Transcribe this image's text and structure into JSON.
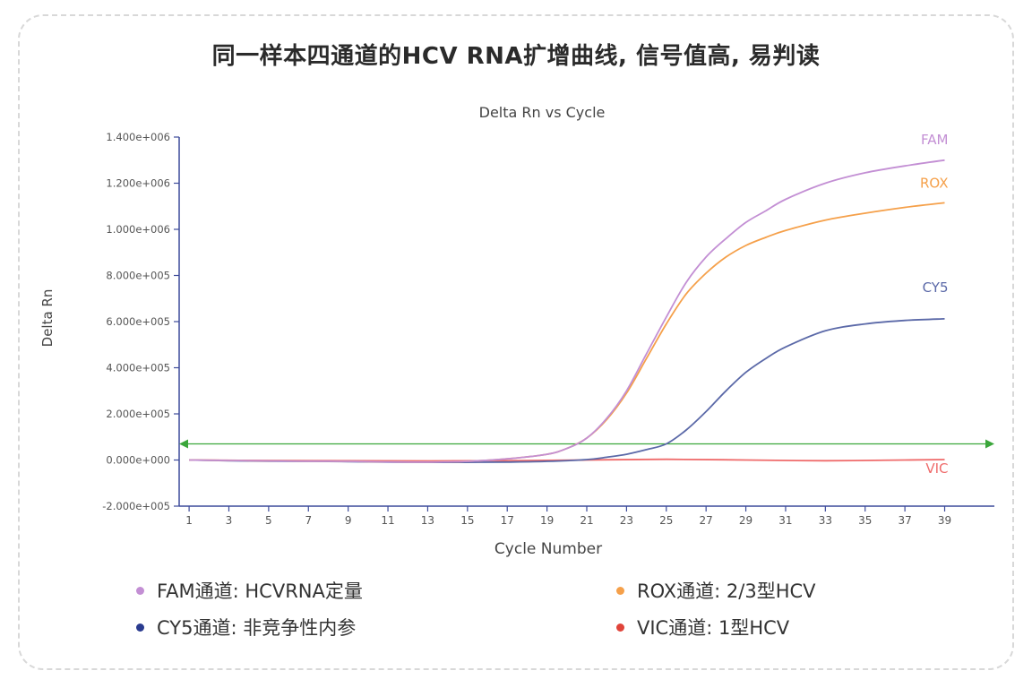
{
  "page": {
    "title": "同一样本四通道的HCV RNA扩增曲线, 信号值高, 易判读"
  },
  "legend": [
    {
      "label": "FAM通道: HCVRNA定量",
      "color": "#c38fd4"
    },
    {
      "label": "ROX通道: 2/3型HCV",
      "color": "#f5a04a"
    },
    {
      "label": "CY5通道: 非竞争性内参",
      "color": "#2a3b8f"
    },
    {
      "label": "VIC通道: 1型HCV",
      "color": "#e0443a"
    }
  ],
  "chart_data": {
    "type": "line",
    "title": "Delta Rn vs Cycle",
    "xlabel": "Cycle Number",
    "ylabel": "Delta Rn",
    "xlim": [
      0.5,
      41.5
    ],
    "ylim": [
      -200000,
      1400000
    ],
    "x_ticks": [
      1,
      3,
      5,
      7,
      9,
      11,
      13,
      15,
      17,
      19,
      21,
      23,
      25,
      27,
      29,
      31,
      33,
      35,
      37,
      39
    ],
    "x_tick_labels": [
      "1",
      "3",
      "5",
      "7",
      "9",
      "11",
      "13",
      "15",
      "17",
      "19",
      "21",
      "23",
      "25",
      "27",
      "29",
      "31",
      "33",
      "35",
      "37",
      "39"
    ],
    "y_ticks": [
      -200000,
      0,
      200000,
      400000,
      600000,
      800000,
      1000000,
      1200000,
      1400000
    ],
    "y_tick_labels": [
      "-2.000e+005",
      "0.000e+000",
      "2.000e+005",
      "4.000e+005",
      "6.000e+005",
      "8.000e+005",
      "1.000e+006",
      "1.200e+006",
      "1.400e+006"
    ],
    "threshold": {
      "value": 70000,
      "color": "#3aa63a"
    },
    "grid": false,
    "series": [
      {
        "name": "FAM",
        "color": "#c38fd4",
        "x": [
          1,
          3,
          5,
          7,
          9,
          11,
          13,
          15,
          17,
          19,
          20,
          21,
          22,
          23,
          24,
          25,
          26,
          27,
          28,
          29,
          30,
          31,
          33,
          35,
          37,
          39
        ],
        "y": [
          0,
          -2000,
          -4000,
          -5000,
          -6000,
          -8000,
          -9000,
          -6000,
          5000,
          25000,
          50000,
          95000,
          180000,
          300000,
          460000,
          620000,
          770000,
          880000,
          960000,
          1030000,
          1080000,
          1130000,
          1200000,
          1245000,
          1275000,
          1300000
        ]
      },
      {
        "name": "ROX",
        "color": "#f5a04a",
        "x": [
          1,
          3,
          5,
          7,
          9,
          11,
          13,
          15,
          17,
          19,
          20,
          21,
          22,
          23,
          24,
          25,
          26,
          27,
          28,
          29,
          30,
          31,
          33,
          35,
          37,
          39
        ],
        "y": [
          0,
          -2000,
          -4000,
          -5000,
          -6000,
          -8000,
          -9000,
          -6000,
          5000,
          25000,
          50000,
          95000,
          175000,
          290000,
          440000,
          590000,
          720000,
          810000,
          880000,
          930000,
          965000,
          995000,
          1040000,
          1070000,
          1095000,
          1115000
        ]
      },
      {
        "name": "CY5",
        "color": "#5b69a8",
        "x": [
          1,
          3,
          5,
          7,
          9,
          11,
          13,
          15,
          17,
          19,
          21,
          22,
          23,
          24,
          25,
          26,
          27,
          28,
          29,
          30,
          31,
          33,
          35,
          37,
          39
        ],
        "y": [
          0,
          -3000,
          -5000,
          -6000,
          -7000,
          -9000,
          -10000,
          -10000,
          -9000,
          -6000,
          2000,
          12000,
          25000,
          45000,
          70000,
          130000,
          210000,
          300000,
          380000,
          440000,
          490000,
          560000,
          590000,
          605000,
          612000
        ]
      },
      {
        "name": "VIC",
        "color": "#ef6b6b",
        "x": [
          1,
          5,
          9,
          13,
          17,
          21,
          25,
          29,
          33,
          37,
          39
        ],
        "y": [
          0,
          -2000,
          -3000,
          -4000,
          -3000,
          0,
          3000,
          0,
          -3000,
          0,
          2000
        ]
      }
    ]
  }
}
